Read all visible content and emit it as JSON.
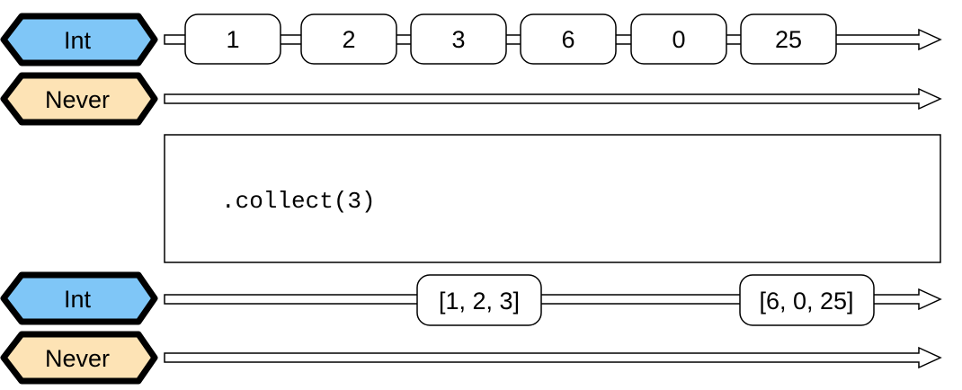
{
  "colors": {
    "int_fill": "#7fc6f7",
    "never_fill": "#fde3b5",
    "stroke": "#000000",
    "badge_border": "#111111"
  },
  "upstream": {
    "output_type": "Int",
    "failure_type": "Never",
    "values": [
      "1",
      "2",
      "3",
      "6",
      "0",
      "25"
    ]
  },
  "operator": {
    "code": ".collect(3)"
  },
  "downstream": {
    "output_type": "Int",
    "failure_type": "Never",
    "values": [
      "[1, 2, 3]",
      "[6, 0, 25]"
    ]
  }
}
